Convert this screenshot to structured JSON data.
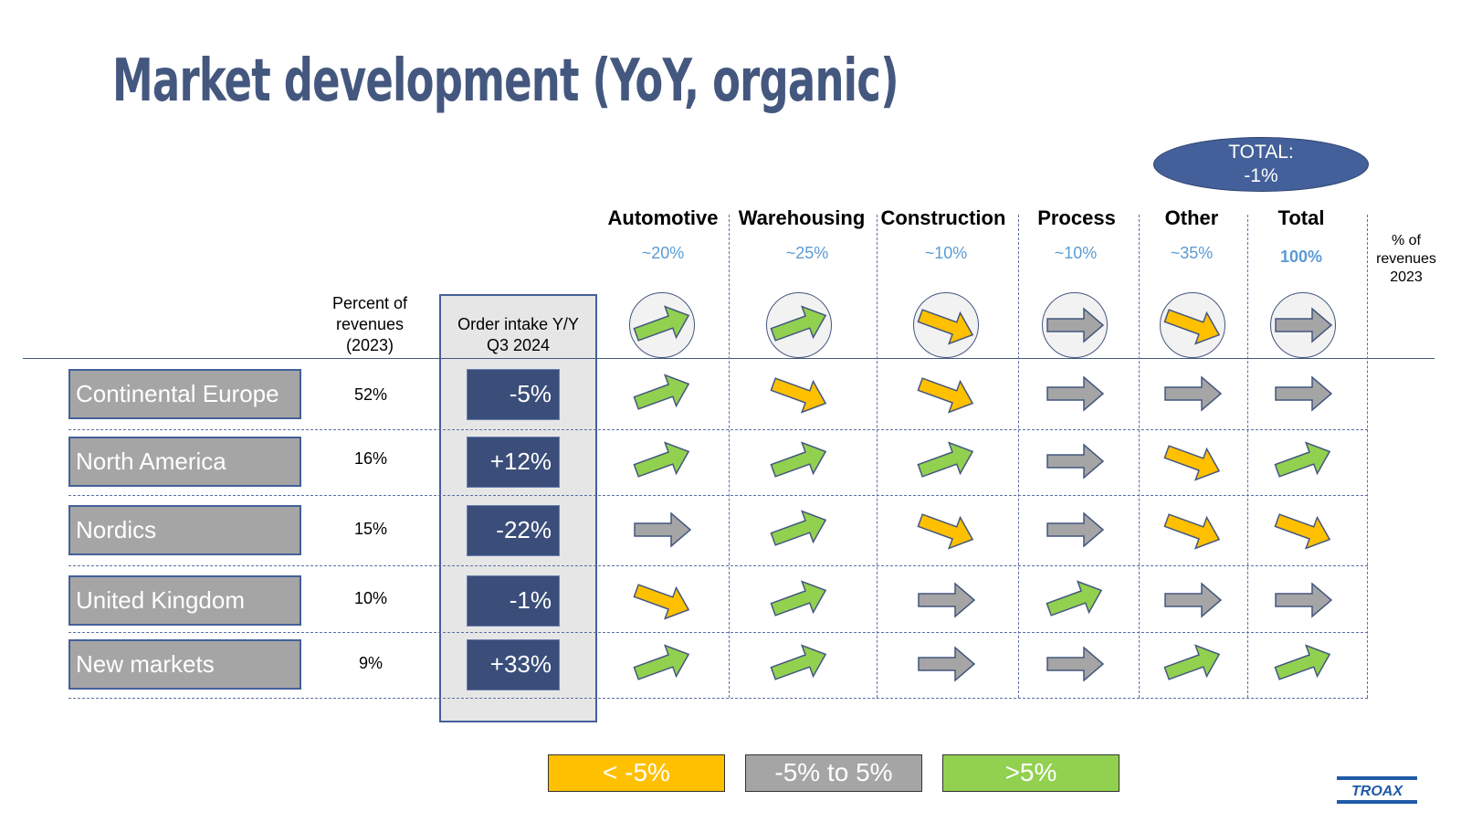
{
  "title": "Market development (YoY, organic)",
  "total_badge": {
    "line1": "TOTAL:",
    "line2": "-1%"
  },
  "segments": [
    {
      "name": "Automotive",
      "share": "~20%"
    },
    {
      "name": "Warehousing",
      "share": "~25%"
    },
    {
      "name": "Construction",
      "share": "~10%"
    },
    {
      "name": "Process",
      "share": "~10%"
    },
    {
      "name": "Other",
      "share": "~35%"
    },
    {
      "name": "Total",
      "share": "100%"
    }
  ],
  "pct_revenues_header": {
    "line1": "% of",
    "line2": "revenues",
    "line3": "2023"
  },
  "col_percent_header": {
    "line1": "Percent of",
    "line2": "revenues",
    "line3": "(2023)"
  },
  "col_order_header": {
    "line1": "Order intake Y/Y",
    "line2": "Q3 2024"
  },
  "segment_overall_trend": [
    "up",
    "up",
    "down",
    "flat",
    "down",
    "flat"
  ],
  "rows": [
    {
      "region": "Continental Europe",
      "percent": "52%",
      "order_intake": "-5%",
      "trends": [
        "up",
        "down",
        "down",
        "flat",
        "flat",
        "flat"
      ]
    },
    {
      "region": "North America",
      "percent": "16%",
      "order_intake": "+12%",
      "trends": [
        "up",
        "up",
        "up",
        "flat",
        "down",
        "up"
      ]
    },
    {
      "region": "Nordics",
      "percent": "15%",
      "order_intake": "-22%",
      "trends": [
        "flat",
        "up",
        "down",
        "flat",
        "down",
        "down"
      ]
    },
    {
      "region": "United Kingdom",
      "percent": "10%",
      "order_intake": "-1%",
      "trends": [
        "down",
        "up",
        "flat",
        "up",
        "flat",
        "flat"
      ]
    },
    {
      "region": "New markets",
      "percent": "9%",
      "order_intake": "+33%",
      "trends": [
        "up",
        "up",
        "flat",
        "flat",
        "up",
        "up"
      ]
    }
  ],
  "legend": [
    {
      "label": "< -5%",
      "color": "#ffc000",
      "trend": "down"
    },
    {
      "label": "-5% to 5%",
      "color": "#a5a5a5",
      "trend": "flat"
    },
    {
      "label": ">5%",
      "color": "#92d050",
      "trend": "up"
    }
  ],
  "trend_colors": {
    "up": "#92d050",
    "flat": "#a5a5a5",
    "down": "#ffc000"
  },
  "logo_text": "TROAX"
}
